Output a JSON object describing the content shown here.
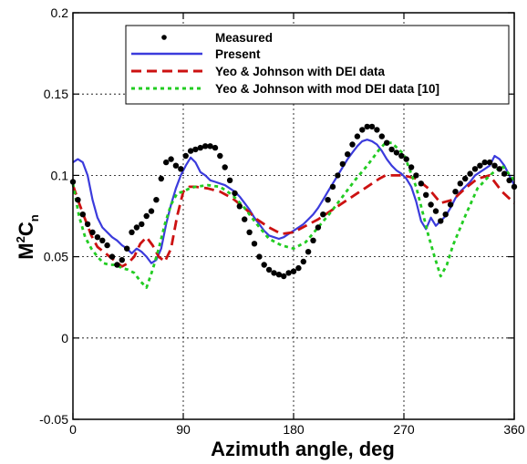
{
  "chart_data": {
    "type": "line",
    "title": "",
    "xlabel": "Azimuth angle, deg",
    "ylabel_main": "M",
    "ylabel_sup": "2",
    "ylabel_mid": "C",
    "ylabel_sub": "n",
    "xlim": [
      0,
      360
    ],
    "ylim": [
      -0.05,
      0.2
    ],
    "x_ticks": [
      0,
      90,
      180,
      270,
      360
    ],
    "y_ticks": [
      -0.05,
      0,
      0.05,
      0.1,
      0.15,
      0.2
    ],
    "x_tick_labels": [
      "0",
      "90",
      "180",
      "270",
      "360"
    ],
    "y_tick_labels": [
      "-0.05",
      "0",
      "0.05",
      "0.1",
      "0.15",
      "0.2"
    ],
    "grid": true,
    "legend_position": "top-right",
    "series": [
      {
        "name": "Measured",
        "style": "dots",
        "color": "#000000",
        "x": [
          0,
          4,
          8,
          12,
          16,
          20,
          24,
          28,
          32,
          36,
          40,
          44,
          48,
          52,
          56,
          60,
          64,
          68,
          72,
          76,
          80,
          84,
          88,
          92,
          96,
          100,
          104,
          108,
          112,
          116,
          120,
          124,
          128,
          132,
          136,
          140,
          144,
          148,
          152,
          156,
          160,
          164,
          168,
          172,
          176,
          180,
          184,
          188,
          192,
          196,
          200,
          204,
          208,
          212,
          216,
          220,
          224,
          228,
          232,
          236,
          240,
          244,
          248,
          252,
          256,
          260,
          264,
          268,
          272,
          276,
          280,
          284,
          288,
          292,
          296,
          300,
          304,
          308,
          312,
          316,
          320,
          324,
          328,
          332,
          336,
          340,
          344,
          348,
          352,
          356,
          360
        ],
        "values": [
          0.096,
          0.085,
          0.076,
          0.07,
          0.065,
          0.062,
          0.06,
          0.057,
          0.05,
          0.045,
          0.048,
          0.055,
          0.065,
          0.068,
          0.07,
          0.075,
          0.078,
          0.085,
          0.098,
          0.108,
          0.11,
          0.106,
          0.104,
          0.112,
          0.115,
          0.116,
          0.117,
          0.118,
          0.118,
          0.117,
          0.112,
          0.105,
          0.097,
          0.089,
          0.081,
          0.073,
          0.065,
          0.058,
          0.05,
          0.045,
          0.042,
          0.04,
          0.039,
          0.038,
          0.04,
          0.041,
          0.043,
          0.047,
          0.053,
          0.06,
          0.068,
          0.076,
          0.085,
          0.093,
          0.1,
          0.107,
          0.113,
          0.119,
          0.124,
          0.128,
          0.13,
          0.13,
          0.128,
          0.124,
          0.12,
          0.116,
          0.114,
          0.112,
          0.11,
          0.105,
          0.1,
          0.095,
          0.088,
          0.082,
          0.078,
          0.072,
          0.076,
          0.082,
          0.09,
          0.095,
          0.098,
          0.101,
          0.104,
          0.106,
          0.108,
          0.108,
          0.106,
          0.104,
          0.101,
          0.097,
          0.093
        ]
      },
      {
        "name": "Present",
        "style": "solid",
        "color": "#3b3bdc",
        "x": [
          0,
          4,
          8,
          12,
          16,
          20,
          24,
          28,
          32,
          36,
          40,
          44,
          48,
          52,
          56,
          60,
          64,
          68,
          72,
          76,
          80,
          84,
          88,
          92,
          96,
          100,
          104,
          108,
          112,
          116,
          120,
          124,
          128,
          132,
          136,
          140,
          144,
          148,
          152,
          156,
          160,
          164,
          168,
          172,
          176,
          180,
          184,
          188,
          192,
          196,
          200,
          204,
          208,
          212,
          216,
          220,
          224,
          228,
          232,
          236,
          240,
          244,
          248,
          252,
          256,
          260,
          264,
          268,
          272,
          276,
          280,
          284,
          288,
          292,
          296,
          300,
          304,
          308,
          312,
          316,
          320,
          324,
          328,
          332,
          336,
          340,
          344,
          348,
          352,
          356,
          360
        ],
        "values": [
          0.108,
          0.11,
          0.108,
          0.1,
          0.085,
          0.074,
          0.068,
          0.065,
          0.062,
          0.06,
          0.057,
          0.055,
          0.052,
          0.055,
          0.053,
          0.05,
          0.046,
          0.048,
          0.055,
          0.07,
          0.082,
          0.092,
          0.1,
          0.106,
          0.111,
          0.108,
          0.102,
          0.1,
          0.097,
          0.096,
          0.095,
          0.094,
          0.092,
          0.09,
          0.087,
          0.083,
          0.079,
          0.074,
          0.07,
          0.066,
          0.063,
          0.062,
          0.061,
          0.062,
          0.064,
          0.066,
          0.068,
          0.07,
          0.073,
          0.076,
          0.08,
          0.085,
          0.09,
          0.095,
          0.1,
          0.105,
          0.11,
          0.114,
          0.118,
          0.121,
          0.122,
          0.121,
          0.119,
          0.115,
          0.11,
          0.106,
          0.103,
          0.101,
          0.098,
          0.093,
          0.084,
          0.072,
          0.067,
          0.074,
          0.069,
          0.072,
          0.075,
          0.08,
          0.086,
          0.09,
          0.093,
          0.096,
          0.1,
          0.102,
          0.104,
          0.106,
          0.112,
          0.11,
          0.106,
          0.1,
          0.094
        ]
      },
      {
        "name": "Yeo & Johnson with DEI data",
        "style": "dashed",
        "color": "#cc1111",
        "x": [
          0,
          5,
          10,
          15,
          20,
          25,
          30,
          35,
          40,
          45,
          50,
          55,
          60,
          65,
          70,
          75,
          80,
          85,
          90,
          95,
          100,
          110,
          120,
          130,
          140,
          150,
          160,
          170,
          180,
          190,
          200,
          210,
          220,
          230,
          240,
          250,
          255,
          260,
          270,
          280,
          290,
          300,
          310,
          320,
          330,
          340,
          350,
          360
        ],
        "values": [
          0.094,
          0.083,
          0.073,
          0.063,
          0.056,
          0.053,
          0.05,
          0.047,
          0.044,
          0.046,
          0.05,
          0.058,
          0.062,
          0.057,
          0.05,
          0.047,
          0.055,
          0.075,
          0.09,
          0.093,
          0.093,
          0.092,
          0.09,
          0.086,
          0.08,
          0.073,
          0.068,
          0.064,
          0.065,
          0.069,
          0.073,
          0.078,
          0.083,
          0.088,
          0.093,
          0.098,
          0.1,
          0.1,
          0.1,
          0.098,
          0.092,
          0.083,
          0.085,
          0.092,
          0.098,
          0.1,
          0.09,
          0.083
        ]
      },
      {
        "name": "Yeo & Johnson with mod DEI data [10]",
        "style": "dotted",
        "color": "#22cc22",
        "x": [
          0,
          5,
          10,
          15,
          20,
          25,
          30,
          35,
          40,
          45,
          50,
          55,
          60,
          65,
          70,
          75,
          80,
          85,
          90,
          95,
          100,
          110,
          120,
          130,
          140,
          150,
          160,
          170,
          180,
          190,
          200,
          210,
          220,
          230,
          240,
          250,
          255,
          260,
          270,
          280,
          285,
          290,
          295,
          300,
          305,
          310,
          320,
          330,
          340,
          350,
          360
        ],
        "values": [
          0.095,
          0.075,
          0.062,
          0.055,
          0.05,
          0.046,
          0.045,
          0.045,
          0.043,
          0.042,
          0.04,
          0.035,
          0.031,
          0.042,
          0.055,
          0.07,
          0.082,
          0.089,
          0.09,
          0.092,
          0.093,
          0.094,
          0.093,
          0.088,
          0.08,
          0.07,
          0.061,
          0.057,
          0.055,
          0.059,
          0.068,
          0.077,
          0.087,
          0.097,
          0.106,
          0.116,
          0.12,
          0.12,
          0.113,
          0.093,
          0.078,
          0.063,
          0.05,
          0.038,
          0.045,
          0.057,
          0.075,
          0.092,
          0.1,
          0.106,
          0.097
        ]
      }
    ]
  }
}
